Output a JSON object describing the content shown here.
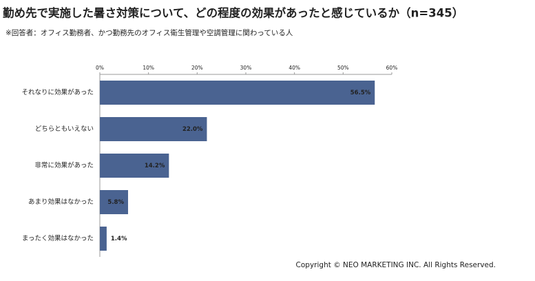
{
  "chart_data": {
    "type": "bar",
    "orientation": "horizontal",
    "title": "勤め先で実施した暑さ対策について、どの程度の効果があったと感じているか（n=345）",
    "subtitle": "※回答者：オフィス勤務者、かつ勤務先のオフィス衛生管理や空調管理に関わっている人",
    "categories": [
      "それなりに効果があった",
      "どちらともいえない",
      "非常に効果があった",
      "あまり効果はなかった",
      "まったく効果はなかった"
    ],
    "values": [
      56.5,
      22.0,
      14.2,
      5.8,
      1.4
    ],
    "value_labels": [
      "56.5%",
      "22.0%",
      "14.2%",
      "5.8%",
      "1.4%"
    ],
    "color": "#4a6391",
    "xlim": [
      0,
      60
    ],
    "xticks": [
      {
        "value": 0,
        "label": "0%"
      },
      {
        "value": 10,
        "label": "10%"
      },
      {
        "value": 20,
        "label": "20%"
      },
      {
        "value": 30,
        "label": "30%"
      },
      {
        "value": 40,
        "label": "40%"
      },
      {
        "value": 50,
        "label": "50%"
      },
      {
        "value": 60,
        "label": "60%"
      }
    ],
    "grid": false,
    "copyright": "Copyright © NEO MARKETING INC. All Rights Reserved."
  }
}
